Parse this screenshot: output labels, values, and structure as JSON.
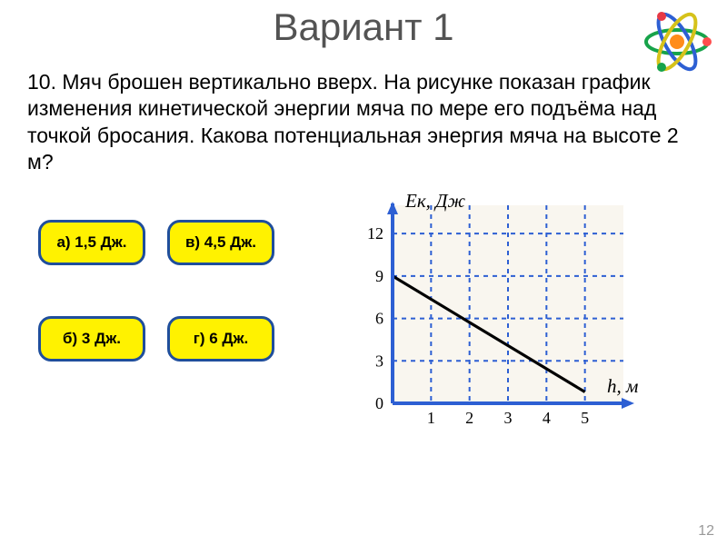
{
  "title": "Вариант 1",
  "question": "10. Мяч брошен вертикально вверх. На рисунке показан график изменения кинетической энергии мяча по мере его подъёма над точкой бросания. Какова потенциальная энергия мяча на высоте 2 м?",
  "answers": {
    "a": "а) 1,5 Дж.",
    "b": "б) 3 Дж.",
    "c": "в) 4,5 Дж.",
    "d": "г) 6 Дж."
  },
  "chart": {
    "type": "line",
    "y_label": "Eк, Дж",
    "x_label": "h, м",
    "y_ticks": [
      0,
      3,
      6,
      9,
      12
    ],
    "x_ticks": [
      0,
      1,
      2,
      3,
      4,
      5
    ],
    "ylim": [
      0,
      14
    ],
    "xlim": [
      0,
      6
    ],
    "line": {
      "start": [
        0,
        9
      ],
      "end": [
        5,
        0.8
      ]
    },
    "grid_color": "#2d5fd3",
    "axis_color": "#2d5fd3",
    "line_color": "#000000",
    "background_color": "#f9f6ef",
    "axis_font_size": 21,
    "tick_font_size": 18,
    "grid_dash": "5,5",
    "line_width": 3.2,
    "axis_width": 4
  },
  "atom_colors": {
    "nucleus": "#ff8c1a",
    "orbit1": "#17a34a",
    "orbit2": "#2d5fd3",
    "orbit3": "#d6c21a",
    "electron1": "#ff4d4d",
    "electron2": "#e63946",
    "electron3": "#17a34a"
  },
  "page_number": "12"
}
